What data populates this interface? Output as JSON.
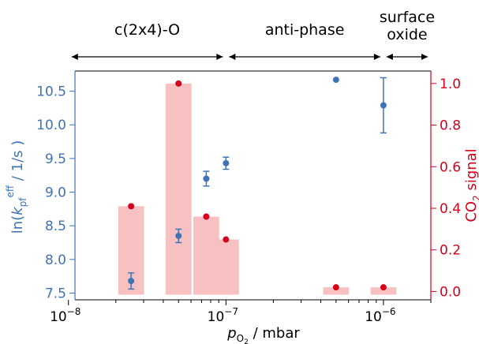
{
  "chart_data": {
    "type": "scatter",
    "x_scale": "log",
    "xlim": [
      1.1e-08,
      2e-06
    ],
    "xlabel": {
      "p": "p",
      "sub": "O",
      "sub2": "2",
      "unit": " / mbar"
    },
    "xticks": [
      {
        "value": 1e-08,
        "base": "10",
        "exp": "−8"
      },
      {
        "value": 1e-07,
        "base": "10",
        "exp": "−7"
      },
      {
        "value": 1e-06,
        "base": "10",
        "exp": "−6"
      }
    ],
    "y_left": {
      "label_parts": {
        "a": "ln(",
        "k": "k",
        "sub": "pf",
        "sup": "eff",
        "b": " / 1/s )"
      },
      "color": "#3f73b5",
      "ylim": [
        7.4,
        10.8
      ],
      "ticks": [
        "7.5",
        "8.0",
        "8.5",
        "9.0",
        "9.5",
        "10.0",
        "10.5"
      ]
    },
    "y_right": {
      "label_parts": {
        "a": "CO",
        "sub": "2",
        "b": " signal"
      },
      "color": "#d6001c",
      "ylim": [
        -0.04,
        1.06
      ],
      "ticks": [
        "0.0",
        "0.2",
        "0.4",
        "0.6",
        "0.8",
        "1.0"
      ]
    },
    "series": [
      {
        "axis": "left",
        "color": "#3f73b5",
        "points": [
          {
            "x": 2.5e-08,
            "y": 7.68,
            "err": 0.12
          },
          {
            "x": 5e-08,
            "y": 8.35,
            "err": 0.1
          },
          {
            "x": 7.5e-08,
            "y": 9.2,
            "err": 0.11
          },
          {
            "x": 1e-07,
            "y": 9.43,
            "err": 0.09
          },
          {
            "x": 5e-07,
            "y": 10.67,
            "err": 0
          },
          {
            "x": 1e-06,
            "y": 10.29,
            "err": 0.41
          }
        ]
      },
      {
        "axis": "right",
        "color": "#d6001c",
        "bar_color": "#f7c1c1",
        "points": [
          {
            "x": 2.5e-08,
            "y": 0.41
          },
          {
            "x": 5e-08,
            "y": 1.0
          },
          {
            "x": 7.5e-08,
            "y": 0.36
          },
          {
            "x": 1e-07,
            "y": 0.25
          },
          {
            "x": 5e-07,
            "y": 0.02
          },
          {
            "x": 1e-06,
            "y": 0.02
          }
        ]
      }
    ],
    "regions": [
      {
        "label_lines": [
          "c(2x4)-O"
        ],
        "from": 1e-08,
        "to": 1e-07
      },
      {
        "label_lines": [
          "anti-phase"
        ],
        "from": 1e-07,
        "to": 1e-06
      },
      {
        "label_lines": [
          "surface",
          "oxide"
        ],
        "from": 1e-06,
        "to": 2e-06
      }
    ]
  }
}
